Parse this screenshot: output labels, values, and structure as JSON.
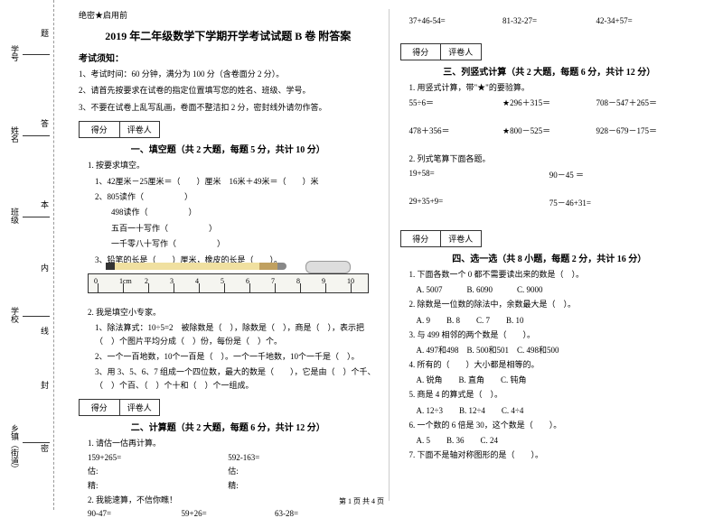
{
  "sidebar": {
    "labels": [
      "学号",
      "姓名",
      "班级",
      "学校",
      "乡镇（街道）"
    ],
    "marks": [
      "题",
      "答",
      "本",
      "内",
      "线",
      "封",
      "密"
    ]
  },
  "confidential": "绝密★启用前",
  "title": "2019 年二年级数学下学期开学考试试题 B 卷 附答案",
  "notice_head": "考试须知：",
  "notices": [
    "1、考试时间：60 分钟，满分为 100 分（含卷面分 2 分）。",
    "2、请首先按要求在试卷的指定位置填写您的姓名、班级、学号。",
    "3、不要在试卷上乱写乱画，卷面不整洁扣 2 分，密封线外请勿作答。"
  ],
  "scorebox": {
    "c1": "得分",
    "c2": "评卷人"
  },
  "sec1": {
    "title": "一、填空题（共 2 大题，每题 5 分，共计 10 分）",
    "q1": "1. 按要求填空。",
    "q1_items": [
      "1、42厘米－25厘米＝（　　）厘米　16米＋49米＝（　　）米",
      "2、805读作（　　　　　）",
      "　　498读作（　　　　　）",
      "　　五百一十写作（　　　　　）",
      "　　一千零八十写作（　　　　　）",
      "3、铅笔的长是（　　）厘米，橡皮的长是（　　）。"
    ],
    "q2": "2. 我是填空小专家。",
    "q2_items": [
      "1、除法算式：10÷5=2　被除数是（　），除数是（　），商是（　），表示把（　）个图片平均分成（　）份，每份是（　）个。",
      "2、一个一百地数，10个一百是（　）。一个一千地数，10个一千是（　）。",
      "3、用 3、5、6、7 组成一个四位数，最大的数是（　　），它是由（　）个千、（　）个百、（　）个十和（　）个一组成。"
    ]
  },
  "sec2": {
    "title": "二、计算题（共 2 大题，每题 6 分，共计 12 分）",
    "q1": "1. 请估一估再计算。",
    "rows": [
      [
        "159+265=",
        "592-163="
      ],
      [
        "估:",
        "估:"
      ],
      [
        "精:",
        "精:"
      ]
    ],
    "q2": "2. 我能速算，不信你瞧！",
    "row2": [
      "90-47=",
      "59+26=",
      "63-28="
    ],
    "row3": [
      "37+46-54=",
      "81-32-27=",
      "42-34+57="
    ]
  },
  "sec3": {
    "title": "三、列竖式计算（共 2 大题，每题 6 分，共计 12 分）",
    "q1": "1. 用竖式计算，带\"★\"的要验算。",
    "rows": [
      [
        "55÷6＝",
        "★296＋315＝",
        "708－547＋265＝"
      ],
      [
        "478＋356＝",
        "★800－525＝",
        "928－679－175＝"
      ]
    ],
    "q2": "2. 列式笔算下面各题。",
    "rows2": [
      [
        "19+58=",
        "90－45 ＝"
      ],
      [
        "29+35+9=",
        "75－46+31="
      ]
    ]
  },
  "sec4": {
    "title": "四、选一选（共 8 小题，每题 2 分，共计 16 分）",
    "items": [
      {
        "q": "1. 下面各数一个 0 都不需要读出来的数是（　）。",
        "opts": "A. 5007　　　B. 6090　　　C. 9000"
      },
      {
        "q": "2. 除数是一位数的除法中，余数最大是（　）。",
        "opts": "A. 9　　B. 8　　C. 7　　B. 10"
      },
      {
        "q": "3. 与 499 相邻的两个数是（　　）。",
        "opts": "A. 497和498　B. 500和501　C. 498和500"
      },
      {
        "q": "4. 所有的（　　）大小都是相等的。",
        "opts": "A. 锐角　　B. 直角　　C. 钝角"
      },
      {
        "q": "5. 商是 4 的算式是（　）。",
        "opts": "A. 12÷3　　B. 12÷4　　C. 4÷4"
      },
      {
        "q": "6. 一个数的 6 倍是 30，这个数是（　　）。",
        "opts": "A. 5　　B. 36　　C. 24"
      },
      {
        "q": "7. 下面不是轴对称图形的是（　　）。",
        "opts": ""
      }
    ]
  },
  "ruler": {
    "ticks": [
      "0",
      "1cm",
      "2",
      "3",
      "4",
      "5",
      "6",
      "7",
      "8",
      "9",
      "10"
    ]
  },
  "footer": "第 1 页 共 4 页"
}
